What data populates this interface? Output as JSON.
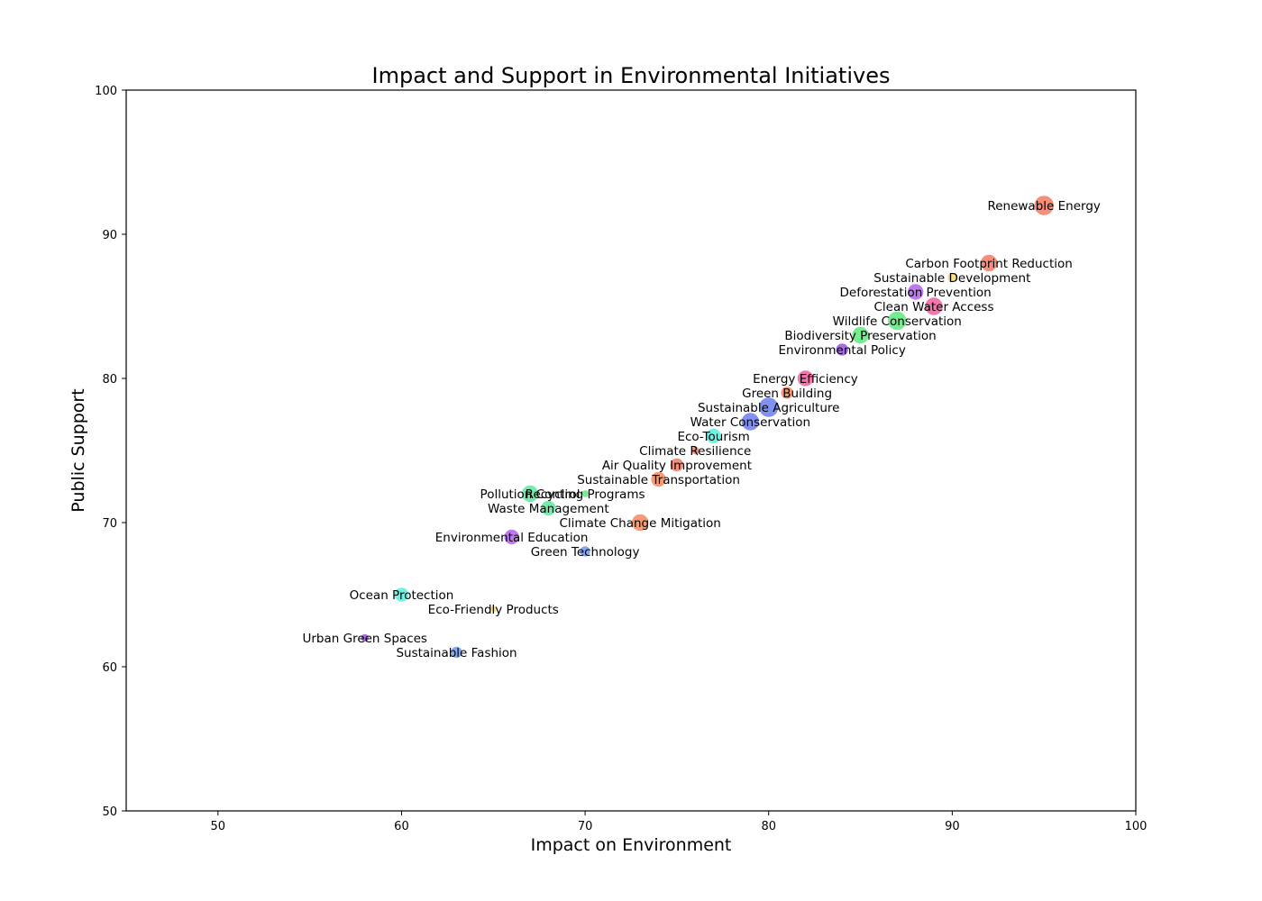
{
  "chart_data": {
    "type": "scatter",
    "title": "Impact and Support in Environmental Initiatives",
    "xlabel": "Impact on Environment",
    "ylabel": "Public Support",
    "xlim": [
      45,
      100
    ],
    "ylim": [
      50,
      100
    ],
    "xticks": [
      50,
      60,
      70,
      80,
      90,
      100
    ],
    "yticks": [
      50,
      60,
      70,
      80,
      90,
      100
    ],
    "grid": false,
    "points": [
      {
        "label": "Renewable Energy",
        "x": 95,
        "y": 92,
        "size": 22,
        "color": "#f47a63"
      },
      {
        "label": "Carbon Footprint Reduction",
        "x": 92,
        "y": 88,
        "size": 19,
        "color": "#f47a63"
      },
      {
        "label": "Sustainable Development",
        "x": 90,
        "y": 87,
        "size": 11,
        "color": "#fbd86d"
      },
      {
        "label": "Deforestation Prevention",
        "x": 88,
        "y": 86,
        "size": 18,
        "color": "#b462ec"
      },
      {
        "label": "Clean Water Access",
        "x": 89,
        "y": 85,
        "size": 20,
        "color": "#ef5fa0"
      },
      {
        "label": "Wildlife Conservation",
        "x": 87,
        "y": 84,
        "size": 21,
        "color": "#5ee87b"
      },
      {
        "label": "Biodiversity Preservation",
        "x": 85,
        "y": 83,
        "size": 19,
        "color": "#5ee87b"
      },
      {
        "label": "Environmental Policy",
        "x": 84,
        "y": 82,
        "size": 14,
        "color": "#9b52e6"
      },
      {
        "label": "Energy Efficiency",
        "x": 82,
        "y": 80,
        "size": 18,
        "color": "#ef5fa0"
      },
      {
        "label": "Green Building",
        "x": 81,
        "y": 79,
        "size": 14,
        "color": "#f4895a"
      },
      {
        "label": "Sustainable Agriculture",
        "x": 80,
        "y": 78,
        "size": 22,
        "color": "#6b7ef0"
      },
      {
        "label": "Water Conservation",
        "x": 79,
        "y": 77,
        "size": 20,
        "color": "#6b7ef0"
      },
      {
        "label": "Eco-Tourism",
        "x": 77,
        "y": 76,
        "size": 17,
        "color": "#58f0dc"
      },
      {
        "label": "Climate Resilience",
        "x": 76,
        "y": 75,
        "size": 9,
        "color": "#f47a63"
      },
      {
        "label": "Air Quality Improvement",
        "x": 75,
        "y": 74,
        "size": 15,
        "color": "#f47a63"
      },
      {
        "label": "Sustainable Transportation",
        "x": 74,
        "y": 73,
        "size": 17,
        "color": "#f4895a"
      },
      {
        "label": "Pollution Control",
        "x": 67,
        "y": 72,
        "size": 19,
        "color": "#5ee8a0"
      },
      {
        "label": "Recycling Programs",
        "x": 70,
        "y": 72,
        "size": 8,
        "color": "#5ee87b"
      },
      {
        "label": "Waste Management",
        "x": 68,
        "y": 71,
        "size": 17,
        "color": "#5ee8a0"
      },
      {
        "label": "Climate Change Mitigation",
        "x": 73,
        "y": 70,
        "size": 19,
        "color": "#f4895a"
      },
      {
        "label": "Environmental Education",
        "x": 66,
        "y": 69,
        "size": 17,
        "color": "#b462ec"
      },
      {
        "label": "Green Technology",
        "x": 70,
        "y": 68,
        "size": 12,
        "color": "#6b9af0"
      },
      {
        "label": "Ocean Protection",
        "x": 60,
        "y": 65,
        "size": 16,
        "color": "#58f0dc"
      },
      {
        "label": "Eco-Friendly Products",
        "x": 65,
        "y": 64,
        "size": 7,
        "color": "#fbd86d"
      },
      {
        "label": "Urban Green Spaces",
        "x": 58,
        "y": 62,
        "size": 9,
        "color": "#9b52e6"
      },
      {
        "label": "Sustainable Fashion",
        "x": 63,
        "y": 61,
        "size": 13,
        "color": "#6b9af0"
      }
    ]
  }
}
